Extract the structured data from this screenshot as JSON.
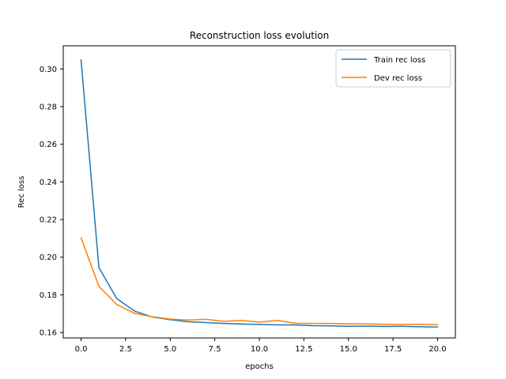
{
  "chart_data": {
    "type": "line",
    "title": "Reconstruction loss evolution",
    "xlabel": "epochs",
    "ylabel": "Rec loss",
    "xlim": [
      -1.0,
      21.0
    ],
    "ylim": [
      0.1571,
      0.3123
    ],
    "xticks": [
      0.0,
      2.5,
      5.0,
      7.5,
      10.0,
      12.5,
      15.0,
      17.5,
      20.0
    ],
    "xtick_labels": [
      "0.0",
      "2.5",
      "5.0",
      "7.5",
      "10.0",
      "12.5",
      "15.0",
      "17.5",
      "20.0"
    ],
    "yticks": [
      0.16,
      0.18,
      0.2,
      0.22,
      0.24,
      0.26,
      0.28,
      0.3
    ],
    "ytick_labels": [
      "0.16",
      "0.18",
      "0.20",
      "0.22",
      "0.24",
      "0.26",
      "0.28",
      "0.30"
    ],
    "grid": false,
    "legend_position": "top-right",
    "x": [
      0,
      1,
      2,
      3,
      4,
      5,
      6,
      7,
      8,
      9,
      10,
      11,
      12,
      13,
      14,
      15,
      16,
      17,
      18,
      19,
      20
    ],
    "series": [
      {
        "name": "Train rec loss",
        "color": "#1f77b4",
        "values": [
          0.3048,
          0.1945,
          0.178,
          0.1714,
          0.1682,
          0.1668,
          0.1657,
          0.1653,
          0.1648,
          0.1645,
          0.1643,
          0.164,
          0.164,
          0.1636,
          0.1635,
          0.1633,
          0.1634,
          0.1632,
          0.1633,
          0.163,
          0.1629
        ]
      },
      {
        "name": "Dev rec loss",
        "color": "#ff7f0e",
        "values": [
          0.2103,
          0.1845,
          0.1749,
          0.1702,
          0.1683,
          0.1671,
          0.1666,
          0.167,
          0.1659,
          0.1664,
          0.1655,
          0.1664,
          0.1649,
          0.1648,
          0.1648,
          0.1646,
          0.1646,
          0.1643,
          0.1643,
          0.1644,
          0.1642
        ]
      }
    ]
  }
}
